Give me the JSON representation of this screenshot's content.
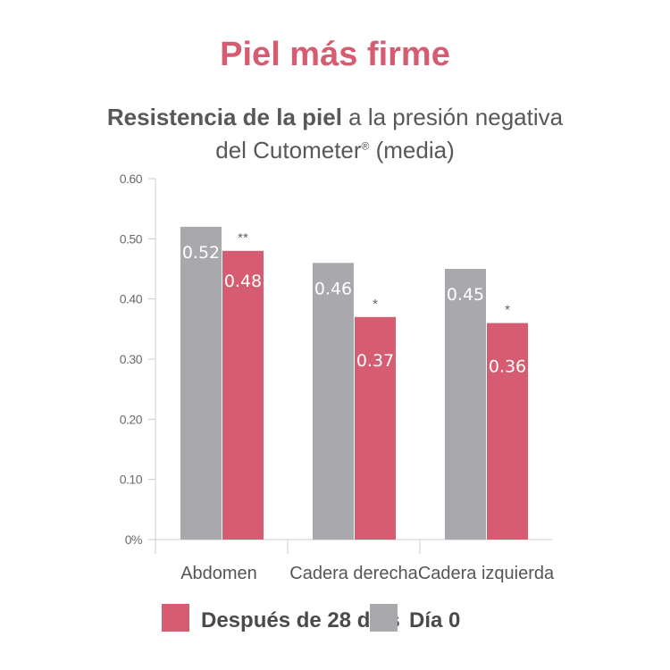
{
  "chart_data": {
    "type": "bar",
    "title": "Piel más firme",
    "subtitle_bold": "Resistencia de la piel",
    "subtitle_rest": " a la presión negativa",
    "subtitle_line2": "del Cutometer",
    "subtitle_reg": "®",
    "subtitle_end": " (media)",
    "categories": [
      "Abdomen",
      "Cadera derecha",
      "Cadera izquierda"
    ],
    "series": [
      {
        "name": "Día 0",
        "color": "#a9a8ac",
        "values": [
          0.52,
          0.46,
          0.45
        ],
        "labels": [
          "0.52",
          "0.46",
          "0.45"
        ]
      },
      {
        "name": "Después de 28 días",
        "color": "#d65c71",
        "values": [
          0.48,
          0.37,
          0.36
        ],
        "labels": [
          "0.48",
          "0.37",
          "0.36"
        ],
        "significance": [
          "**",
          "*",
          "*"
        ]
      }
    ],
    "ylim": [
      0,
      0.6
    ],
    "yticks": [
      "0%",
      "0.10",
      "0.20",
      "0.30",
      "0.40",
      "0.50",
      "0.60"
    ],
    "legend": [
      "Después de 28 días",
      "Día 0"
    ],
    "legend_position": "bottom",
    "grid": false
  }
}
